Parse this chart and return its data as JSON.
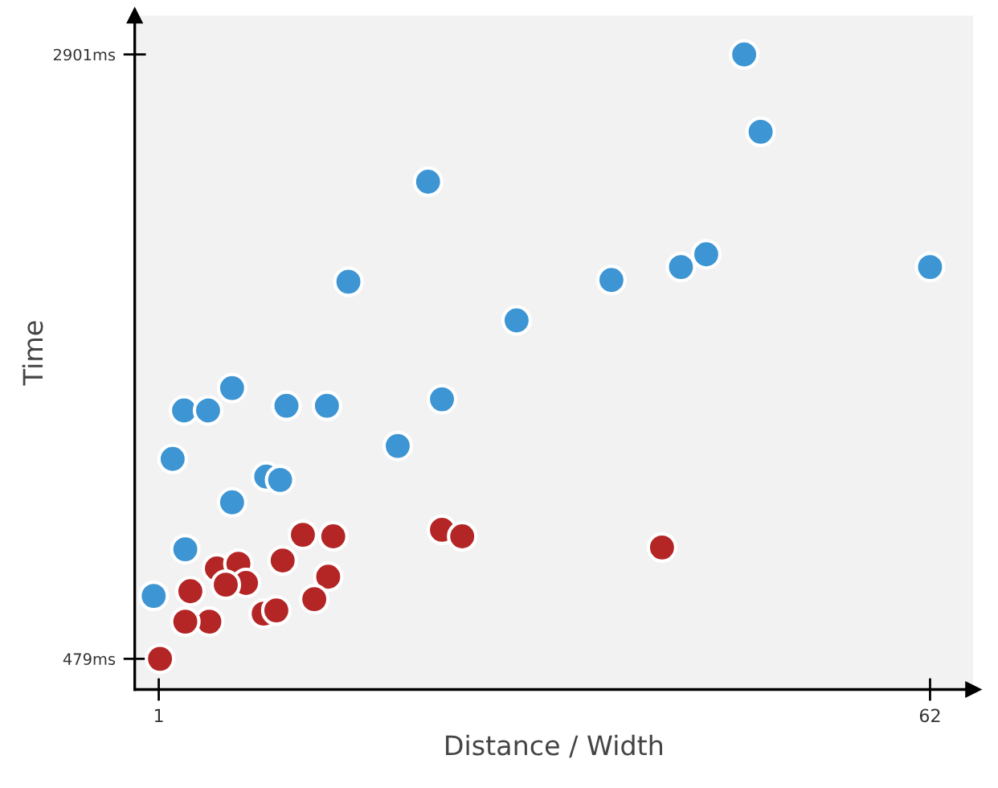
{
  "chart_data": {
    "type": "scatter",
    "xlabel": "Distance / Width",
    "ylabel": "Time",
    "xlim": [
      -0.9,
      65.4
    ],
    "ylim": [
      356,
      3056
    ],
    "xticks": [
      1,
      62
    ],
    "yticks": [
      {
        "value": 479,
        "label": "479ms"
      },
      {
        "value": 2901,
        "label": "2901ms"
      }
    ],
    "grid": false,
    "marker": "circle",
    "series": [
      {
        "color": "#3d95d3",
        "x": [
          47.3,
          48.6,
          22.3,
          62,
          44.3,
          42.3,
          36.8,
          16,
          29.3,
          6.8,
          3,
          4.9,
          11.1,
          14.3,
          23.4,
          19.9,
          2.1,
          9.5,
          10.6,
          6.8,
          3.1,
          0.6
        ],
        "values": [
          2901,
          2591,
          2391,
          2049,
          2100,
          2049,
          1997,
          1990,
          1835,
          1564,
          1474,
          1474,
          1493,
          1493,
          1519,
          1332,
          1280,
          1209,
          1196,
          1106,
          918,
          731
        ]
      },
      {
        "color": "#b42525",
        "x": [
          1.1,
          12.4,
          14.8,
          23.4,
          25,
          40.8,
          10.8,
          14.4,
          3.5,
          5.6,
          7.3,
          7.9,
          6.3,
          5,
          3.1,
          9.3,
          10.3,
          13.3
        ],
        "values": [
          479,
          976,
          970,
          996,
          970,
          925,
          873,
          808,
          750,
          841,
          860,
          783,
          776,
          628,
          628,
          660,
          673,
          718
        ]
      }
    ]
  }
}
